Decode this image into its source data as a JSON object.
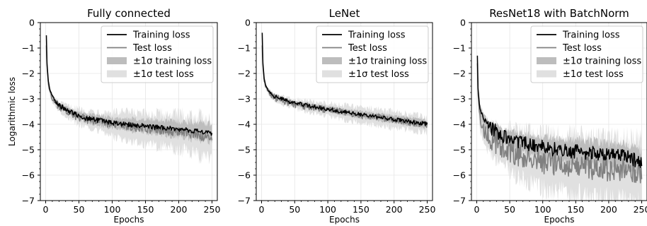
{
  "chart_data": [
    {
      "type": "line",
      "title": "Fully connected",
      "xlabel": "Epochs",
      "ylabel": "Logarithmic loss",
      "xlim": [
        -8,
        258
      ],
      "ylim": [
        -7,
        0
      ],
      "xticks": [
        0,
        50,
        100,
        150,
        200,
        250
      ],
      "yticks": [
        0,
        -1,
        -2,
        -3,
        -4,
        -5,
        -6,
        -7
      ],
      "grid": true,
      "legend_position": "top-right",
      "series": [
        {
          "name": "Training loss",
          "color": "#000000",
          "x": [
            1,
            2,
            4,
            6,
            10,
            15,
            20,
            30,
            40,
            50,
            60,
            80,
            100,
            120,
            140,
            160,
            180,
            200,
            220,
            240,
            250
          ],
          "y": [
            -0.5,
            -1.6,
            -2.3,
            -2.6,
            -2.9,
            -3.1,
            -3.25,
            -3.4,
            -3.55,
            -3.65,
            -3.75,
            -3.85,
            -3.95,
            -4.0,
            -4.05,
            -4.1,
            -4.15,
            -4.2,
            -4.25,
            -4.3,
            -4.35
          ]
        },
        {
          "name": "Test loss",
          "color": "#808080",
          "x": [
            1,
            2,
            4,
            6,
            10,
            15,
            20,
            30,
            40,
            50,
            60,
            80,
            100,
            120,
            140,
            160,
            180,
            200,
            220,
            240,
            250
          ],
          "y": [
            -0.9,
            -1.7,
            -2.4,
            -2.7,
            -3.0,
            -3.15,
            -3.3,
            -3.45,
            -3.6,
            -3.7,
            -3.8,
            -3.9,
            -4.0,
            -4.05,
            -4.15,
            -4.2,
            -4.25,
            -4.3,
            -4.4,
            -4.5,
            -4.6
          ]
        }
      ],
      "bands": [
        {
          "name": "±1σ training loss",
          "color": "#bdbdbd",
          "x": [
            2,
            50,
            100,
            150,
            200,
            250
          ],
          "width": [
            0.05,
            0.15,
            0.2,
            0.25,
            0.3,
            0.35
          ]
        },
        {
          "name": "±1σ test loss",
          "color": "#e0e0e0",
          "x": [
            2,
            50,
            100,
            150,
            200,
            250
          ],
          "width": [
            0.1,
            0.3,
            0.45,
            0.55,
            0.65,
            0.8
          ]
        }
      ]
    },
    {
      "type": "line",
      "title": "LeNet",
      "xlabel": "Epochs",
      "ylabel": "",
      "xlim": [
        -8,
        258
      ],
      "ylim": [
        -7,
        0
      ],
      "xticks": [
        0,
        50,
        100,
        150,
        200,
        250
      ],
      "yticks": [
        0,
        -1,
        -2,
        -3,
        -4,
        -5,
        -6,
        -7
      ],
      "grid": true,
      "legend_position": "top-right",
      "series": [
        {
          "name": "Training loss",
          "color": "#000000",
          "x": [
            1,
            2,
            4,
            6,
            10,
            15,
            20,
            30,
            40,
            50,
            60,
            80,
            100,
            120,
            140,
            160,
            180,
            200,
            220,
            240,
            250
          ],
          "y": [
            -0.4,
            -1.6,
            -2.2,
            -2.45,
            -2.65,
            -2.8,
            -2.9,
            -3.0,
            -3.1,
            -3.17,
            -3.22,
            -3.32,
            -3.4,
            -3.5,
            -3.58,
            -3.65,
            -3.73,
            -3.8,
            -3.88,
            -3.95,
            -4.0
          ]
        },
        {
          "name": "Test loss",
          "color": "#808080",
          "x": [
            1,
            2,
            4,
            6,
            10,
            15,
            20,
            30,
            40,
            50,
            60,
            80,
            100,
            120,
            140,
            160,
            180,
            200,
            220,
            240,
            250
          ],
          "y": [
            -0.9,
            -1.7,
            -2.3,
            -2.5,
            -2.7,
            -2.85,
            -2.95,
            -3.05,
            -3.12,
            -3.2,
            -3.25,
            -3.35,
            -3.42,
            -3.52,
            -3.6,
            -3.68,
            -3.75,
            -3.82,
            -3.9,
            -3.98,
            -4.05
          ]
        }
      ],
      "bands": [
        {
          "name": "±1σ training loss",
          "color": "#bdbdbd",
          "x": [
            2,
            50,
            100,
            150,
            200,
            250
          ],
          "width": [
            0.05,
            0.08,
            0.1,
            0.12,
            0.14,
            0.16
          ]
        },
        {
          "name": "±1σ test loss",
          "color": "#e0e0e0",
          "x": [
            2,
            50,
            100,
            150,
            200,
            250
          ],
          "width": [
            0.1,
            0.2,
            0.25,
            0.3,
            0.3,
            0.3
          ]
        }
      ]
    },
    {
      "type": "line",
      "title": "ResNet18 with BatchNorm",
      "xlabel": "Epochs",
      "ylabel": "",
      "xlim": [
        -8,
        258
      ],
      "ylim": [
        -7,
        0
      ],
      "xticks": [
        0,
        50,
        100,
        150,
        200,
        250
      ],
      "yticks": [
        0,
        -1,
        -2,
        -3,
        -4,
        -5,
        -6,
        -7
      ],
      "grid": true,
      "legend_position": "top-right",
      "series": [
        {
          "name": "Training loss",
          "color": "#000000",
          "x": [
            1,
            2,
            4,
            6,
            10,
            15,
            20,
            30,
            40,
            50,
            60,
            80,
            100,
            120,
            140,
            160,
            180,
            200,
            220,
            240,
            250
          ],
          "y": [
            -1.3,
            -2.6,
            -3.2,
            -3.5,
            -3.8,
            -4.0,
            -4.1,
            -4.3,
            -4.45,
            -4.55,
            -4.65,
            -4.8,
            -4.9,
            -5.0,
            -5.05,
            -5.1,
            -5.15,
            -5.2,
            -5.25,
            -5.4,
            -5.55
          ]
        },
        {
          "name": "Test loss",
          "color": "#808080",
          "x": [
            1,
            2,
            4,
            6,
            10,
            15,
            20,
            30,
            40,
            50,
            60,
            80,
            100,
            120,
            140,
            160,
            180,
            200,
            220,
            240,
            250
          ],
          "y": [
            -1.6,
            -2.8,
            -3.5,
            -3.9,
            -4.2,
            -4.4,
            -4.55,
            -4.75,
            -4.9,
            -5.0,
            -5.15,
            -5.3,
            -5.45,
            -5.55,
            -5.6,
            -5.65,
            -5.7,
            -5.75,
            -5.8,
            -5.85,
            -5.9
          ]
        }
      ],
      "bands": [
        {
          "name": "±1σ training loss",
          "color": "#bdbdbd",
          "x": [
            2,
            50,
            100,
            150,
            200,
            250
          ],
          "width": [
            0.2,
            0.3,
            0.4,
            0.45,
            0.45,
            0.5
          ]
        },
        {
          "name": "±1σ test loss",
          "color": "#e0e0e0",
          "x": [
            2,
            50,
            100,
            150,
            200,
            250
          ],
          "width": [
            0.4,
            0.8,
            1.0,
            1.1,
            1.1,
            1.2
          ]
        }
      ]
    }
  ]
}
